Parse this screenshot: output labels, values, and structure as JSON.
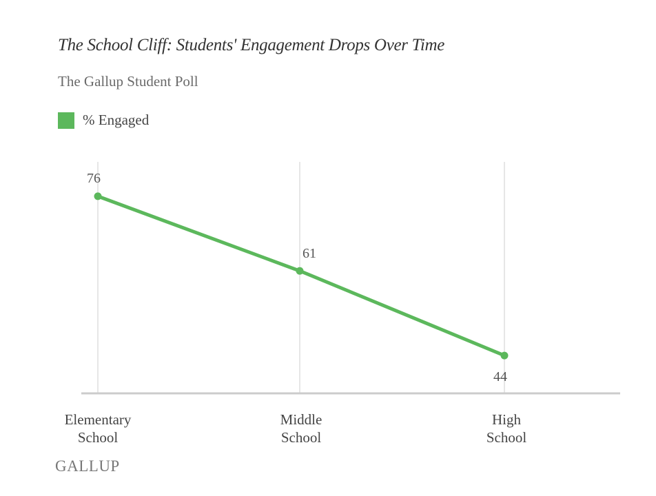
{
  "chart_data": {
    "type": "line",
    "title": "The School Cliff: Students' Engagement Drops Over Time",
    "subtitle": "The Gallup Student Poll",
    "categories": [
      "Elementary School",
      "Middle School",
      "High School"
    ],
    "category_lines": [
      [
        "Elementary",
        "School"
      ],
      [
        "Middle",
        "School"
      ],
      [
        "High",
        "School"
      ]
    ],
    "series": [
      {
        "name": "% Engaged",
        "values": [
          76,
          61,
          44
        ],
        "color": "#5cb85c"
      }
    ],
    "data_labels": [
      "76",
      "61",
      "44"
    ],
    "xlabel": "",
    "ylabel": "",
    "ylim": [
      36.4,
      82.9
    ],
    "grid": "vertical",
    "legend_position": "top-left"
  },
  "source": "GALLUP",
  "colors": {
    "line": "#5cb85c",
    "grid": "#dddddd",
    "axis": "#cccccc",
    "text": "#444444"
  }
}
